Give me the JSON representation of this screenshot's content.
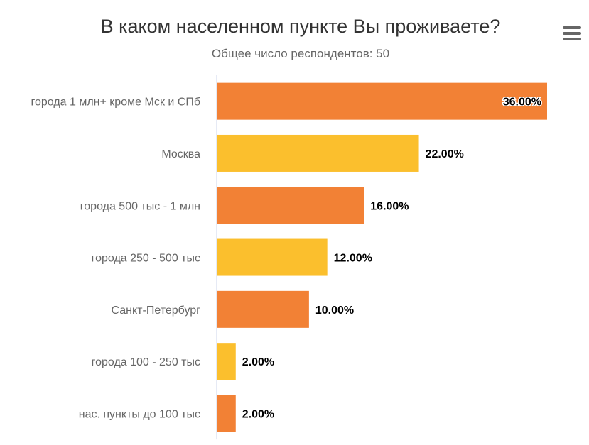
{
  "chart_data": {
    "type": "bar",
    "orientation": "horizontal",
    "title": "В каком населенном пункте Вы проживаете?",
    "subtitle": "Общее число респондентов: 50",
    "categories": [
      "города 1 млн+ кроме Мск и СПб",
      "Москва",
      "города 500 тыс - 1 млн",
      "города 250 - 500 тыс",
      "Санкт-Петербург",
      "города 100 - 250 тыс",
      "нас. пункты до 100 тыс"
    ],
    "values": [
      36,
      22,
      16,
      12,
      10,
      2,
      2
    ],
    "data_labels": [
      "36.00%",
      "22.00%",
      "16.00%",
      "12.00%",
      "10.00%",
      "2.00%",
      "2.00%"
    ],
    "colors": [
      "#f28135",
      "#fbbf2d",
      "#f28135",
      "#fbbf2d",
      "#f28135",
      "#fbbf2d",
      "#f28135"
    ],
    "xlim": [
      0,
      36
    ],
    "grid": false,
    "legend": "none"
  },
  "menu": {
    "icon": "hamburger-menu-icon"
  }
}
